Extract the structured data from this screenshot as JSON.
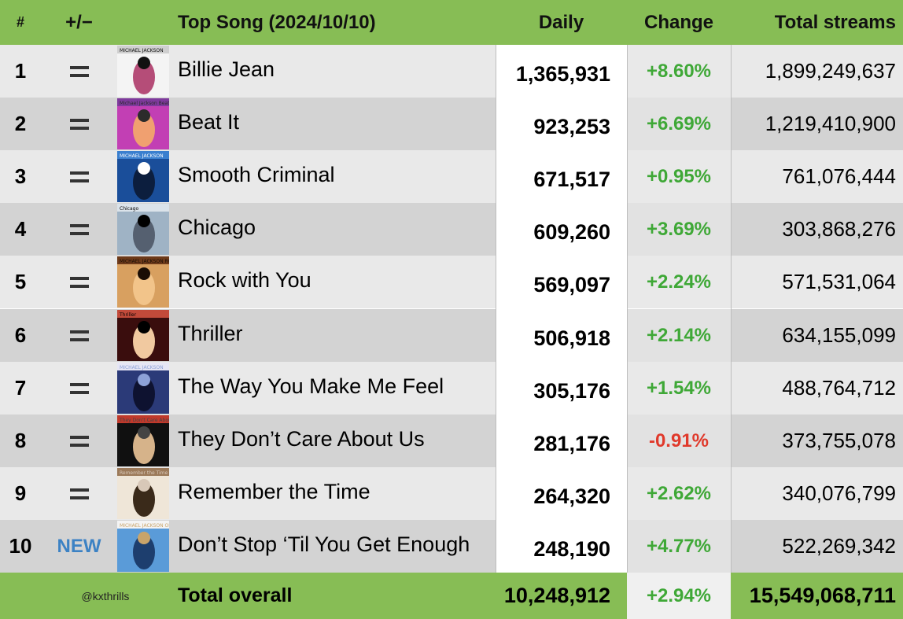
{
  "header": {
    "rank": "#",
    "movement": "+/−",
    "title": "Top Song (2024/10/10)",
    "daily": "Daily",
    "change": "Change",
    "total": "Total streams"
  },
  "rows": [
    {
      "rank": "1",
      "movement": "=",
      "title": "Billie Jean",
      "daily": "1,365,931",
      "change": "+8.60%",
      "total": "1,899,249,637"
    },
    {
      "rank": "2",
      "movement": "=",
      "title": "Beat It",
      "daily": "923,253",
      "change": "+6.69%",
      "total": "1,219,410,900"
    },
    {
      "rank": "3",
      "movement": "=",
      "title": "Smooth Criminal",
      "daily": "671,517",
      "change": "+0.95%",
      "total": "761,076,444"
    },
    {
      "rank": "4",
      "movement": "=",
      "title": "Chicago",
      "daily": "609,260",
      "change": "+3.69%",
      "total": "303,868,276"
    },
    {
      "rank": "5",
      "movement": "=",
      "title": "Rock with You",
      "daily": "569,097",
      "change": "+2.24%",
      "total": "571,531,064"
    },
    {
      "rank": "6",
      "movement": "=",
      "title": "Thriller",
      "daily": "506,918",
      "change": "+2.14%",
      "total": "634,155,099"
    },
    {
      "rank": "7",
      "movement": "=",
      "title": "The Way You Make Me Feel",
      "daily": "305,176",
      "change": "+1.54%",
      "total": "488,764,712"
    },
    {
      "rank": "8",
      "movement": "=",
      "title": "They Don’t Care About Us",
      "daily": "281,176",
      "change": "-0.91%",
      "total": "373,755,078"
    },
    {
      "rank": "9",
      "movement": "=",
      "title": "Remember the Time",
      "daily": "264,320",
      "change": "+2.62%",
      "total": "340,076,799"
    },
    {
      "rank": "10",
      "movement": "NEW",
      "title": "Don’t Stop ‘Til You Get Enough",
      "daily": "248,190",
      "change": "+4.77%",
      "total": "522,269,342"
    }
  ],
  "footer": {
    "handle": "@kxthrills",
    "label": "Total overall",
    "daily": "10,248,912",
    "change": "+2.94%",
    "total": "15,549,068,711"
  },
  "colors": {
    "header_bg": "#87bd55",
    "positive": "#3fa837",
    "negative": "#e0392b",
    "new_badge": "#3c82c4"
  },
  "album_art": [
    {
      "colors": [
        "#f4f4f4",
        "#cfcfcf",
        "#b54d78",
        "#111"
      ],
      "art_text": "MICHAEL JACKSON"
    },
    {
      "colors": [
        "#c23fb4",
        "#7e3a9c",
        "#f0a070",
        "#2b2b2b"
      ],
      "art_text": "Michael Jackson Beat It"
    },
    {
      "colors": [
        "#1a4e9a",
        "#3a7fcf",
        "#0c1e3e",
        "#ffffff"
      ],
      "art_text": "MICHAEL JACKSON"
    },
    {
      "colors": [
        "#9fb3c5",
        "#dbe3ea",
        "#556070",
        "#000"
      ],
      "art_text": "Chicago"
    },
    {
      "colors": [
        "#d8a060",
        "#6d3a1a",
        "#f2c48a",
        "#1a0d05"
      ],
      "art_text": "MICHAEL JACKSON ROCK WITH YOU"
    },
    {
      "colors": [
        "#3a0d0d",
        "#c24a3a",
        "#f1c9a0",
        "#000"
      ],
      "art_text": "Thriller"
    },
    {
      "colors": [
        "#2b3a78",
        "#e6e6f5",
        "#0e1230",
        "#8da2d8"
      ],
      "art_text": "MICHAEL JACKSON"
    },
    {
      "colors": [
        "#101010",
        "#c0392b",
        "#d6b38a",
        "#444"
      ],
      "art_text": "They Don't Care About Us"
    },
    {
      "colors": [
        "#efe6d8",
        "#9c7a5a",
        "#3a2a1a",
        "#d8c8b8"
      ],
      "art_text": "Remember the Time"
    },
    {
      "colors": [
        "#5a9bd8",
        "#f4f4f4",
        "#1d3e6e",
        "#c9a46a"
      ],
      "art_text": "MICHAEL JACKSON OFF THE WALL"
    }
  ]
}
